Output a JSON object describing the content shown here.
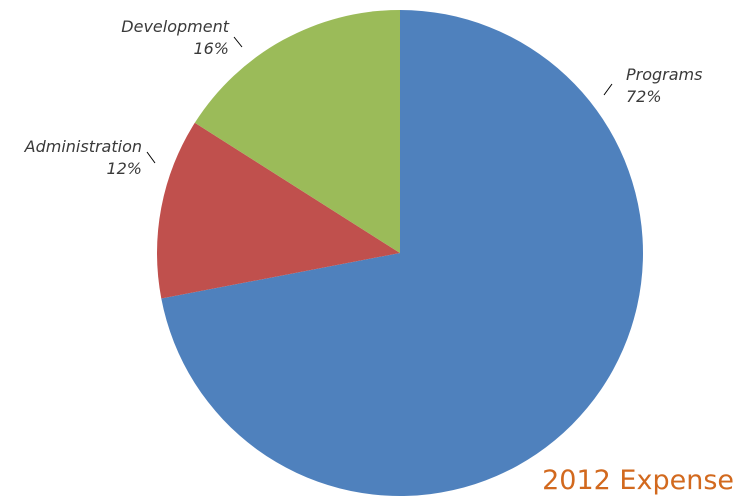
{
  "chart_data": {
    "type": "pie",
    "title": "2012 Expense",
    "slices": [
      {
        "label": "Programs",
        "percent_label": "72%",
        "value": 72,
        "color": "#4f81bd"
      },
      {
        "label": "Administration",
        "percent_label": "12%",
        "value": 12,
        "color": "#c0504d"
      },
      {
        "label": "Development",
        "percent_label": "16%",
        "value": 16,
        "color": "#9bbb59"
      }
    ],
    "title_color": "#d2691e",
    "start_angle_deg": 0,
    "direction": "clockwise",
    "labels": "outside-with-leader-lines"
  }
}
